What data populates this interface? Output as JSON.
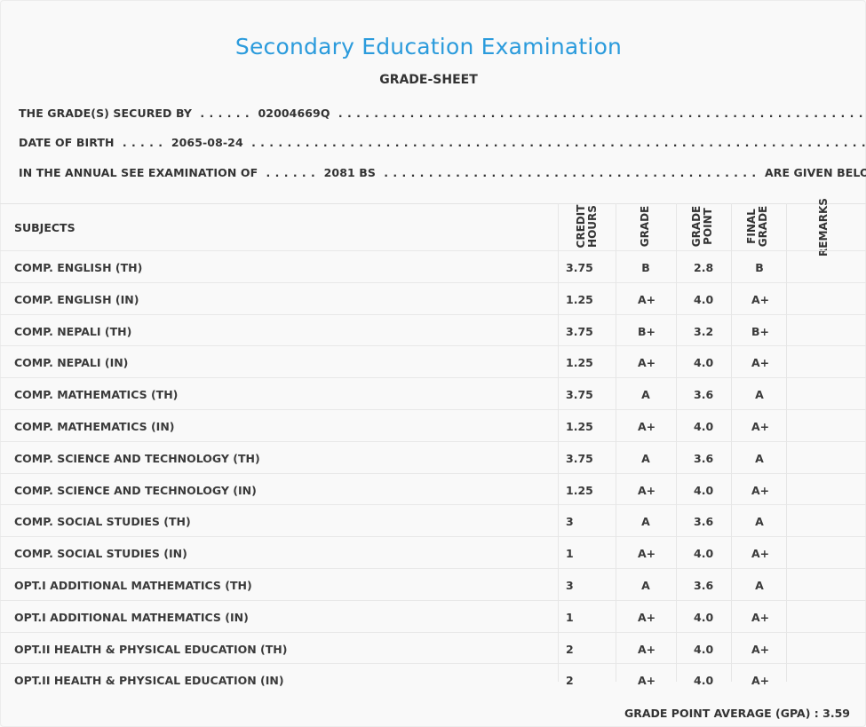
{
  "header": {
    "title": "Secondary Education Examination",
    "subtitle": "GRADE-SHEET"
  },
  "info": {
    "secured_by_label": "THE GRADE(S) SECURED BY",
    "symbol_no": "02004669Q",
    "dob_label": "DATE OF BIRTH",
    "dob": "2065-08-24",
    "exam_label": "IN THE ANNUAL SEE EXAMINATION OF",
    "exam_year": "2081 BS",
    "exam_suffix": "ARE GIVEN BELOW . . ."
  },
  "columns": {
    "subjects": "SUBJECTS",
    "credit_hours_1": "CREDIT",
    "credit_hours_2": "HOURS",
    "grade": "GRADE",
    "grade_point_1": "GRADE",
    "grade_point_2": "POINT",
    "final_grade_1": "FINAL",
    "final_grade_2": "GRADE",
    "remarks": "REMARKS"
  },
  "rows": [
    {
      "subject": "COMP. ENGLISH (TH)",
      "credit": "3.75",
      "grade": "B",
      "point": "2.8",
      "final": "B"
    },
    {
      "subject": "COMP. ENGLISH (IN)",
      "credit": "1.25",
      "grade": "A+",
      "point": "4.0",
      "final": "A+"
    },
    {
      "subject": "COMP. NEPALI (TH)",
      "credit": "3.75",
      "grade": "B+",
      "point": "3.2",
      "final": "B+"
    },
    {
      "subject": "COMP. NEPALI (IN)",
      "credit": "1.25",
      "grade": "A+",
      "point": "4.0",
      "final": "A+"
    },
    {
      "subject": "COMP. MATHEMATICS (TH)",
      "credit": "3.75",
      "grade": "A",
      "point": "3.6",
      "final": "A"
    },
    {
      "subject": "COMP. MATHEMATICS (IN)",
      "credit": "1.25",
      "grade": "A+",
      "point": "4.0",
      "final": "A+"
    },
    {
      "subject": "COMP. SCIENCE AND TECHNOLOGY (TH)",
      "credit": "3.75",
      "grade": "A",
      "point": "3.6",
      "final": "A"
    },
    {
      "subject": "COMP. SCIENCE AND TECHNOLOGY (IN)",
      "credit": "1.25",
      "grade": "A+",
      "point": "4.0",
      "final": "A+"
    },
    {
      "subject": "COMP. SOCIAL STUDIES (TH)",
      "credit": "3",
      "grade": "A",
      "point": "3.6",
      "final": "A"
    },
    {
      "subject": "COMP. SOCIAL STUDIES (IN)",
      "credit": "1",
      "grade": "A+",
      "point": "4.0",
      "final": "A+"
    },
    {
      "subject": "OPT.I ADDITIONAL MATHEMATICS (TH)",
      "credit": "3",
      "grade": "A",
      "point": "3.6",
      "final": "A"
    },
    {
      "subject": "OPT.I ADDITIONAL MATHEMATICS (IN)",
      "credit": "1",
      "grade": "A+",
      "point": "4.0",
      "final": "A+"
    },
    {
      "subject": "OPT.II HEALTH & PHYSICAL EDUCATION (TH)",
      "credit": "2",
      "grade": "A+",
      "point": "4.0",
      "final": "A+"
    },
    {
      "subject": "OPT.II HEALTH & PHYSICAL EDUCATION (IN)",
      "credit": "2",
      "grade": "A+",
      "point": "4.0",
      "final": "A+"
    }
  ],
  "gpa": {
    "label": "GRADE POINT AVERAGE (GPA) :",
    "value": "3.59"
  }
}
